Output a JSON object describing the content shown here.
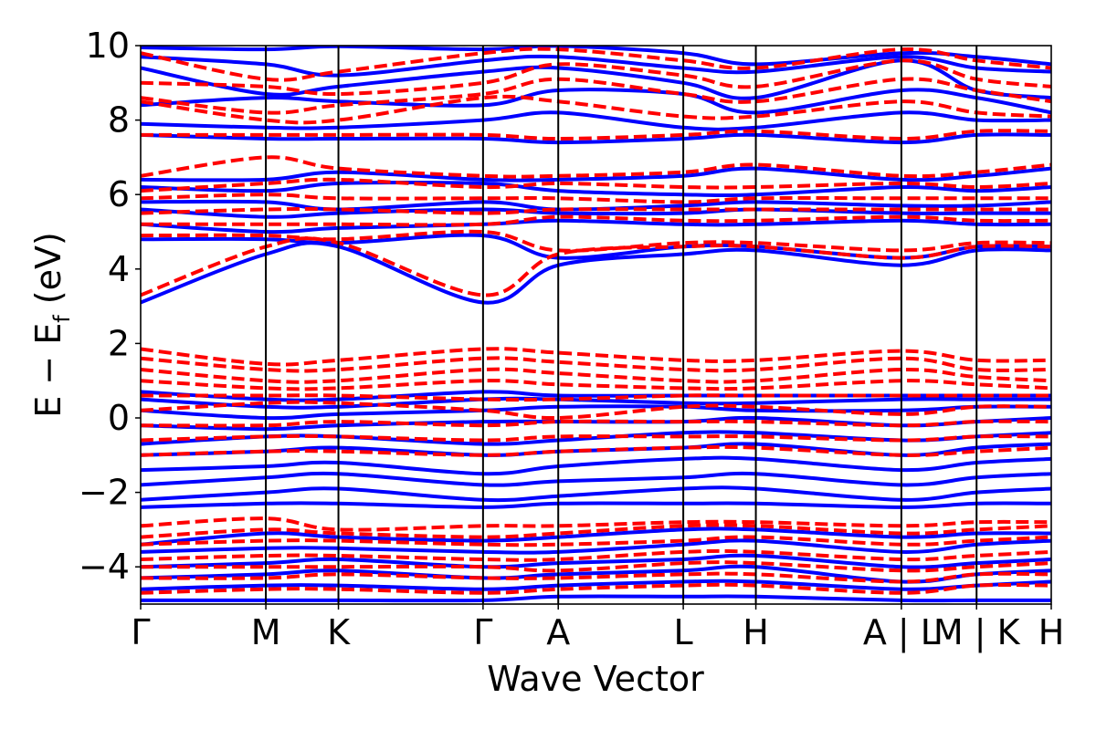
{
  "chart_data": {
    "type": "line",
    "title": "",
    "xlabel": "Wave Vector",
    "ylabel": "E − E_f (eV)",
    "ylabel_parts": {
      "main": "E − E",
      "sub": "f",
      "unit": " (eV)"
    },
    "ylim": [
      -5,
      10
    ],
    "yticks": [
      -4,
      -2,
      0,
      2,
      4,
      6,
      8,
      10
    ],
    "ytick_labels": [
      "−4",
      "−2",
      "0",
      "2",
      "4",
      "6",
      "8",
      "10"
    ],
    "xlim": [
      0,
      1
    ],
    "kpoints": [
      {
        "label": "Γ",
        "x": 0.0
      },
      {
        "label": "M",
        "x": 0.1375
      },
      {
        "label": "K",
        "x": 0.2172
      },
      {
        "label": "Γ",
        "x": 0.376
      },
      {
        "label": "A",
        "x": 0.4586
      },
      {
        "label": "L",
        "x": 0.5959
      },
      {
        "label": "H",
        "x": 0.6756
      },
      {
        "label": "A | L",
        "x": 0.8354
      },
      {
        "label": "M | K",
        "x": 0.918
      },
      {
        "label": "H",
        "x": 1.0
      }
    ],
    "grid": false,
    "series": [
      {
        "style": "solid",
        "color": "#0000ff",
        "bands_at_kpoints": [
          [
            -4.9,
            -4.9,
            -4.9,
            -4.9,
            -4.8,
            -4.8,
            -4.8,
            -4.9,
            -4.9,
            -4.9
          ],
          [
            -4.6,
            -4.5,
            -4.5,
            -4.6,
            -4.5,
            -4.4,
            -4.4,
            -4.6,
            -4.5,
            -4.4
          ],
          [
            -4.3,
            -4.2,
            -4.1,
            -4.3,
            -4.2,
            -4.1,
            -4.0,
            -4.4,
            -4.2,
            -4.1
          ],
          [
            -4.0,
            -3.9,
            -3.8,
            -4.0,
            -3.9,
            -3.8,
            -3.7,
            -4.0,
            -3.9,
            -3.8
          ],
          [
            -3.6,
            -3.5,
            -3.5,
            -3.6,
            -3.6,
            -3.4,
            -3.3,
            -3.6,
            -3.4,
            -3.3
          ],
          [
            -3.4,
            -3.1,
            -3.2,
            -3.3,
            -3.2,
            -3.0,
            -3.0,
            -3.2,
            -3.1,
            -3.1
          ],
          [
            -2.4,
            -2.3,
            -2.3,
            -2.4,
            -2.3,
            -2.3,
            -2.3,
            -2.4,
            -2.3,
            -2.3
          ],
          [
            -2.2,
            -2.0,
            -1.9,
            -2.2,
            -2.1,
            -1.9,
            -1.9,
            -2.2,
            -2.0,
            -1.9
          ],
          [
            -1.8,
            -1.6,
            -1.5,
            -1.8,
            -1.7,
            -1.6,
            -1.5,
            -1.8,
            -1.6,
            -1.5
          ],
          [
            -1.4,
            -1.3,
            -1.2,
            -1.5,
            -1.3,
            -1.1,
            -1.1,
            -1.4,
            -1.2,
            -1.1
          ],
          [
            -1.0,
            -0.9,
            -0.8,
            -1.0,
            -0.9,
            -0.8,
            -0.7,
            -1.0,
            -0.8,
            -0.7
          ],
          [
            -0.7,
            -0.5,
            -0.5,
            -0.7,
            -0.6,
            -0.4,
            -0.4,
            -0.6,
            -0.5,
            -0.4
          ],
          [
            -0.2,
            -0.3,
            -0.2,
            -0.1,
            -0.1,
            -0.1,
            0.0,
            -0.2,
            -0.1,
            0.0
          ],
          [
            0.2,
            0.0,
            0.1,
            0.2,
            0.3,
            0.3,
            0.2,
            0.2,
            0.3,
            0.3
          ],
          [
            0.5,
            0.3,
            0.3,
            0.5,
            0.5,
            0.4,
            0.4,
            0.5,
            0.5,
            0.5
          ],
          [
            0.7,
            0.5,
            0.5,
            0.7,
            0.6,
            0.6,
            0.6,
            0.6,
            0.6,
            0.6
          ],
          [
            3.1,
            4.4,
            4.6,
            3.1,
            4.1,
            4.4,
            4.5,
            4.1,
            4.5,
            4.5
          ],
          [
            4.8,
            4.8,
            4.7,
            4.9,
            4.3,
            4.6,
            4.6,
            4.3,
            4.6,
            4.6
          ],
          [
            5.2,
            5.0,
            5.1,
            5.2,
            5.3,
            5.2,
            5.2,
            5.3,
            5.2,
            5.2
          ],
          [
            5.6,
            5.4,
            5.5,
            5.6,
            5.5,
            5.5,
            5.6,
            5.5,
            5.5,
            5.5
          ],
          [
            5.8,
            5.8,
            5.6,
            5.8,
            5.6,
            5.7,
            5.8,
            5.7,
            5.7,
            5.8
          ],
          [
            6.2,
            6.1,
            6.3,
            6.3,
            6.1,
            6.0,
            6.0,
            6.2,
            6.1,
            6.2
          ],
          [
            6.4,
            6.4,
            6.6,
            6.4,
            6.4,
            6.5,
            6.7,
            6.4,
            6.5,
            6.7
          ],
          [
            7.6,
            7.5,
            7.5,
            7.5,
            7.4,
            7.5,
            7.6,
            7.4,
            7.6,
            7.6
          ],
          [
            7.9,
            7.8,
            7.8,
            8.0,
            8.2,
            7.8,
            7.8,
            8.2,
            8.0,
            8.0
          ],
          [
            8.4,
            8.6,
            8.5,
            8.4,
            8.8,
            8.7,
            8.2,
            8.8,
            8.6,
            8.2
          ],
          [
            9.4,
            8.7,
            8.9,
            9.3,
            9.4,
            9.0,
            8.6,
            9.6,
            8.8,
            8.6
          ],
          [
            9.7,
            9.5,
            9.2,
            9.6,
            9.7,
            9.4,
            9.3,
            9.7,
            9.4,
            9.3
          ],
          [
            9.95,
            9.9,
            9.98,
            9.9,
            9.99,
            9.8,
            9.5,
            9.8,
            9.7,
            9.5
          ]
        ]
      },
      {
        "style": "dashed",
        "color": "#ff0000",
        "bands_at_kpoints": [
          [
            -4.7,
            -4.6,
            -4.6,
            -4.7,
            -4.6,
            -4.5,
            -4.5,
            -4.7,
            -4.5,
            -4.5
          ],
          [
            -4.3,
            -4.3,
            -4.2,
            -4.3,
            -4.3,
            -4.2,
            -4.2,
            -4.4,
            -4.2,
            -4.2
          ],
          [
            -4.0,
            -4.0,
            -4.0,
            -4.0,
            -4.1,
            -3.9,
            -3.9,
            -4.1,
            -4.0,
            -3.9
          ],
          [
            -3.8,
            -3.7,
            -3.7,
            -3.8,
            -3.8,
            -3.6,
            -3.6,
            -3.8,
            -3.7,
            -3.6
          ],
          [
            -3.4,
            -3.3,
            -3.3,
            -3.4,
            -3.4,
            -3.3,
            -3.2,
            -3.4,
            -3.3,
            -3.2
          ],
          [
            -3.2,
            -3.0,
            -3.1,
            -3.2,
            -3.1,
            -2.9,
            -2.9,
            -3.1,
            -3.0,
            -2.9
          ],
          [
            -2.9,
            -2.7,
            -3.0,
            -2.9,
            -2.9,
            -2.8,
            -2.8,
            -2.9,
            -2.8,
            -2.8
          ],
          [
            -1.0,
            -0.9,
            -0.9,
            -1.0,
            -0.9,
            -0.8,
            -0.8,
            -1.0,
            -0.9,
            -0.8
          ],
          [
            -0.6,
            -0.5,
            -0.5,
            -0.6,
            -0.5,
            -0.5,
            -0.5,
            -0.6,
            -0.5,
            -0.5
          ],
          [
            -0.2,
            -0.2,
            -0.1,
            -0.2,
            -0.1,
            -0.1,
            -0.1,
            -0.2,
            -0.1,
            -0.1
          ],
          [
            0.2,
            0.4,
            0.4,
            0.2,
            0.0,
            0.3,
            0.3,
            0.1,
            0.3,
            0.3
          ],
          [
            0.6,
            0.6,
            0.6,
            0.5,
            0.5,
            0.6,
            0.6,
            0.6,
            0.6,
            0.6
          ],
          [
            1.0,
            0.8,
            0.8,
            1.0,
            0.9,
            0.8,
            0.8,
            1.0,
            0.9,
            0.8
          ],
          [
            1.3,
            1.0,
            1.0,
            1.3,
            1.2,
            1.0,
            1.0,
            1.3,
            1.1,
            1.0
          ],
          [
            1.6,
            1.3,
            1.3,
            1.6,
            1.5,
            1.3,
            1.3,
            1.6,
            1.3,
            1.3
          ],
          [
            1.85,
            1.45,
            1.55,
            1.85,
            1.75,
            1.55,
            1.55,
            1.8,
            1.55,
            1.55
          ],
          [
            3.3,
            4.6,
            4.7,
            3.3,
            4.4,
            4.6,
            4.6,
            4.3,
            4.6,
            4.6
          ],
          [
            4.9,
            4.9,
            4.8,
            5.0,
            4.5,
            4.7,
            4.7,
            4.5,
            4.7,
            4.7
          ],
          [
            5.2,
            5.2,
            5.2,
            5.2,
            5.4,
            5.3,
            5.3,
            5.4,
            5.3,
            5.3
          ],
          [
            5.5,
            5.6,
            5.6,
            5.5,
            5.6,
            5.6,
            5.6,
            5.6,
            5.6,
            5.6
          ],
          [
            5.9,
            6.0,
            5.9,
            5.9,
            5.9,
            5.8,
            5.9,
            5.9,
            5.9,
            5.9
          ],
          [
            6.1,
            6.3,
            6.4,
            6.2,
            6.3,
            6.2,
            6.2,
            6.3,
            6.2,
            6.3
          ],
          [
            6.5,
            7.0,
            6.7,
            6.5,
            6.5,
            6.6,
            6.8,
            6.5,
            6.6,
            6.8
          ],
          [
            7.6,
            7.6,
            7.6,
            7.6,
            7.5,
            7.6,
            7.7,
            7.5,
            7.7,
            7.7
          ],
          [
            8.5,
            8.0,
            8.0,
            8.6,
            8.5,
            8.1,
            8.1,
            8.5,
            8.2,
            8.1
          ],
          [
            8.6,
            8.2,
            8.4,
            8.7,
            9.1,
            8.7,
            8.5,
            9.1,
            8.8,
            8.5
          ],
          [
            9.0,
            8.9,
            8.7,
            9.0,
            9.5,
            9.2,
            8.9,
            9.6,
            9.1,
            8.9
          ],
          [
            9.8,
            9.1,
            9.3,
            9.8,
            9.9,
            9.6,
            9.4,
            9.9,
            9.6,
            9.4
          ]
        ]
      }
    ]
  }
}
